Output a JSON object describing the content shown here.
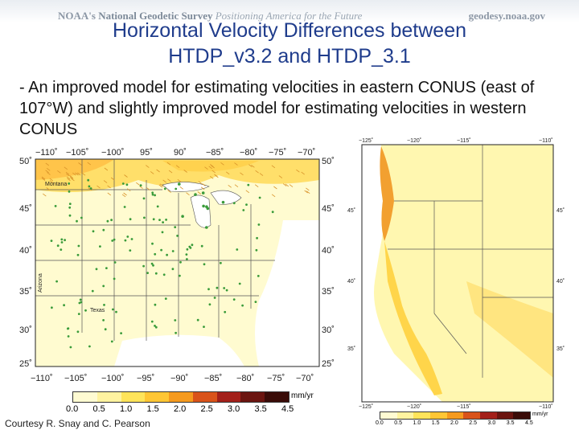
{
  "header": {
    "org_prefix": "NOAA's",
    "org_name": "National Geodetic Survey",
    "tagline": "Positioning America for the Future",
    "site": "geodesy.noaa.gov"
  },
  "slide": {
    "title_line1": "Horizontal Velocity Differences between",
    "title_line2": "HTDP_v3.2 and HTDP_3.1",
    "bullet": "- An improved model for estimating velocities in eastern CONUS (east of 107°W) and slightly improved model for estimating velocities in western CONUS",
    "credit": "Courtesy R. Snay and C. Pearson"
  },
  "east_map": {
    "lon_labels": [
      "−110˚",
      "−105˚",
      "−100˚",
      "95˚",
      "90˚",
      "−85˚",
      "−80˚",
      "−75˚",
      "−70˚"
    ],
    "bottom_lon_labels": [
      "−110˚",
      "−105˚",
      "−100˚",
      "−95˚",
      "−90˚",
      "−85˚",
      "−80˚",
      "−75˚",
      "−70˚"
    ],
    "lat_labels": [
      "50˚",
      "45˚",
      "40˚",
      "35˚",
      "30˚",
      "25˚"
    ],
    "state_labels": [
      "Montana",
      "Arizona",
      "Texas"
    ],
    "colorbar_ticks": [
      "0.0",
      "0.5",
      "1.0",
      "1.5",
      "2.0",
      "2.5",
      "3.0",
      "3.5",
      "4.5"
    ],
    "colorbar_unit": "mm/yr"
  },
  "west_map": {
    "lon_labels": [
      "−125˚",
      "−120˚",
      "−115˚",
      "−110˚"
    ],
    "lat_labels": [
      "45˚",
      "40˚",
      "35˚"
    ],
    "colorbar_ticks": [
      "0.0",
      "0.5",
      "1.0",
      "1.5",
      "2.0",
      "2.5",
      "3.0",
      "3.5",
      "4.5"
    ],
    "colorbar_unit": "mm/yr"
  },
  "colors": {
    "title": "#1f3c8c",
    "colorbar": [
      "#fffbd2",
      "#fff3a0",
      "#ffe45a",
      "#ffc634",
      "#f59a1e",
      "#d9531a",
      "#a3201a",
      "#6b1510",
      "#3a0c08"
    ]
  }
}
